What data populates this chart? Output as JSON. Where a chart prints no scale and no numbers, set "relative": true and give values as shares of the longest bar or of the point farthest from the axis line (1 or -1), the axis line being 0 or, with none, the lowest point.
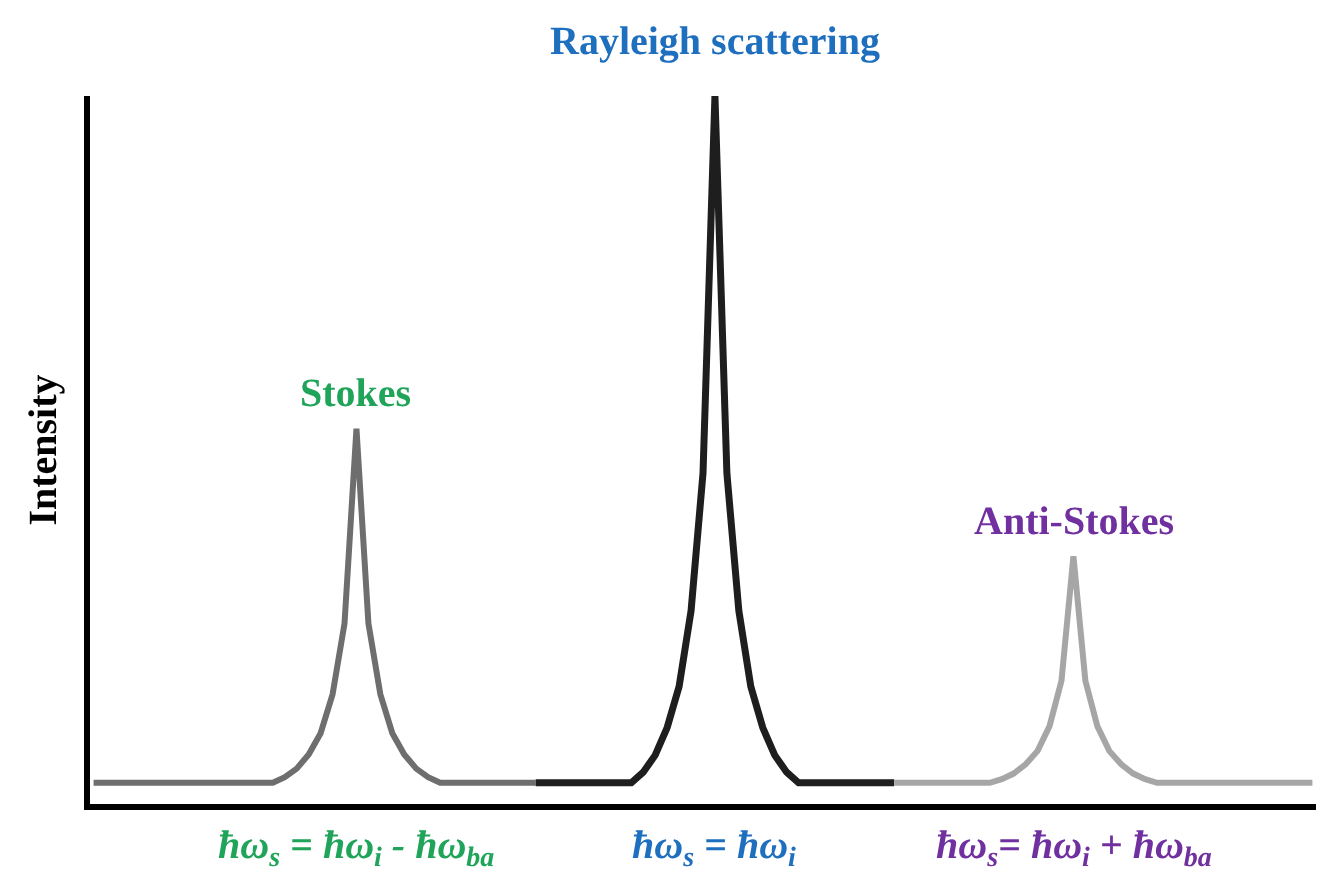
{
  "chart_data": {
    "type": "line",
    "relative": true,
    "ylabel": "Intensity",
    "legend": false,
    "marker": "none",
    "line_style": "solid",
    "categories": [
      null,
      null,
      null,
      null,
      null,
      null,
      null,
      null,
      null,
      null,
      null,
      null,
      null,
      null,
      null,
      null,
      null,
      null,
      null,
      null,
      null,
      null,
      null,
      null,
      null,
      null,
      null,
      null,
      null,
      null,
      null,
      null,
      null,
      null,
      null,
      null,
      null,
      null,
      null,
      null,
      null,
      null,
      null,
      null,
      null,
      null,
      null,
      null,
      null,
      null,
      null,
      null,
      null,
      null,
      null,
      null,
      null,
      null,
      null,
      null,
      null,
      null,
      null,
      null,
      null,
      null,
      null,
      null,
      null,
      null,
      null,
      null,
      null,
      null,
      null,
      null,
      null,
      null,
      null,
      null,
      null,
      null,
      null,
      null,
      null,
      null,
      null,
      null,
      null,
      null,
      null,
      null,
      null,
      null,
      null,
      null,
      null,
      null,
      null,
      null,
      null,
      null,
      null
    ],
    "series": [
      {
        "name": "Stokes",
        "color": "#6e6e6e",
        "values": [
          0.03,
          0.03,
          0.03,
          0.03,
          0.03,
          0.03,
          0.03,
          0.03,
          0.03,
          0.03,
          0.03,
          0.03,
          0.03,
          0.03,
          0.03,
          0.03,
          0.038,
          0.05,
          0.07,
          0.1,
          0.155,
          0.255,
          0.53,
          0.255,
          0.155,
          0.1,
          0.07,
          0.05,
          0.038,
          0.03,
          0.03,
          0.03,
          0.03,
          0.03,
          0.03,
          0.03,
          0.03,
          0.03,
          null,
          null,
          null,
          null,
          null,
          null,
          null,
          null,
          null,
          null,
          null,
          null,
          null,
          null,
          null,
          null,
          null,
          null,
          null,
          null,
          null,
          null,
          null,
          null,
          null,
          null,
          null,
          null,
          null,
          null,
          null,
          null,
          null,
          null,
          null,
          null,
          null,
          null,
          null,
          null,
          null,
          null,
          null,
          null,
          null,
          null,
          null,
          null,
          null,
          null,
          null,
          null,
          null,
          null,
          null,
          null,
          null,
          null,
          null,
          null,
          null,
          null,
          null,
          null,
          null
        ]
      },
      {
        "name": "Rayleigh scattering",
        "color": "#1e1e1e",
        "values": [
          null,
          null,
          null,
          null,
          null,
          null,
          null,
          null,
          null,
          null,
          null,
          null,
          null,
          null,
          null,
          null,
          null,
          null,
          null,
          null,
          null,
          null,
          null,
          null,
          null,
          null,
          null,
          null,
          null,
          null,
          null,
          null,
          null,
          null,
          null,
          null,
          null,
          0.03,
          0.03,
          0.03,
          0.03,
          0.03,
          0.03,
          0.03,
          0.03,
          0.03,
          0.045,
          0.069,
          0.108,
          0.166,
          0.273,
          0.467,
          1,
          0.467,
          0.273,
          0.166,
          0.108,
          0.069,
          0.045,
          0.03,
          0.03,
          0.03,
          0.03,
          0.03,
          0.03,
          0.03,
          0.03,
          0.03,
          null,
          null,
          null,
          null,
          null,
          null,
          null,
          null,
          null,
          null,
          null,
          null,
          null,
          null,
          null,
          null,
          null,
          null,
          null,
          null,
          null,
          null,
          null,
          null,
          null,
          null,
          null,
          null,
          null,
          null,
          null,
          null,
          null,
          null,
          null
        ]
      },
      {
        "name": "Anti-Stokes",
        "color": "#a6a6a6",
        "values": [
          null,
          null,
          null,
          null,
          null,
          null,
          null,
          null,
          null,
          null,
          null,
          null,
          null,
          null,
          null,
          null,
          null,
          null,
          null,
          null,
          null,
          null,
          null,
          null,
          null,
          null,
          null,
          null,
          null,
          null,
          null,
          null,
          null,
          null,
          null,
          null,
          null,
          null,
          null,
          null,
          null,
          null,
          null,
          null,
          null,
          null,
          null,
          null,
          null,
          null,
          null,
          null,
          null,
          null,
          null,
          null,
          null,
          null,
          null,
          null,
          null,
          null,
          null,
          null,
          null,
          null,
          null,
          0.03,
          0.03,
          0.03,
          0.03,
          0.03,
          0.03,
          0.03,
          0.03,
          0.03,
          0.035,
          0.043,
          0.056,
          0.075,
          0.11,
          0.174,
          0.35,
          0.174,
          0.11,
          0.075,
          0.056,
          0.043,
          0.035,
          0.03,
          0.03,
          0.03,
          0.03,
          0.03,
          0.03,
          0.03,
          0.03,
          0.03,
          0.03,
          0.03,
          0.03,
          0.03,
          0.03
        ]
      }
    ],
    "annotations": [
      "ħω$_{s}$ = ħω$_{i}$ - ħω$_{ba}$",
      "ħω$_{s}$ = ħω$_{i}$",
      "ħω$_{s}$= ħω$_{i}$ + ħω$_{ba}$"
    ]
  }
}
